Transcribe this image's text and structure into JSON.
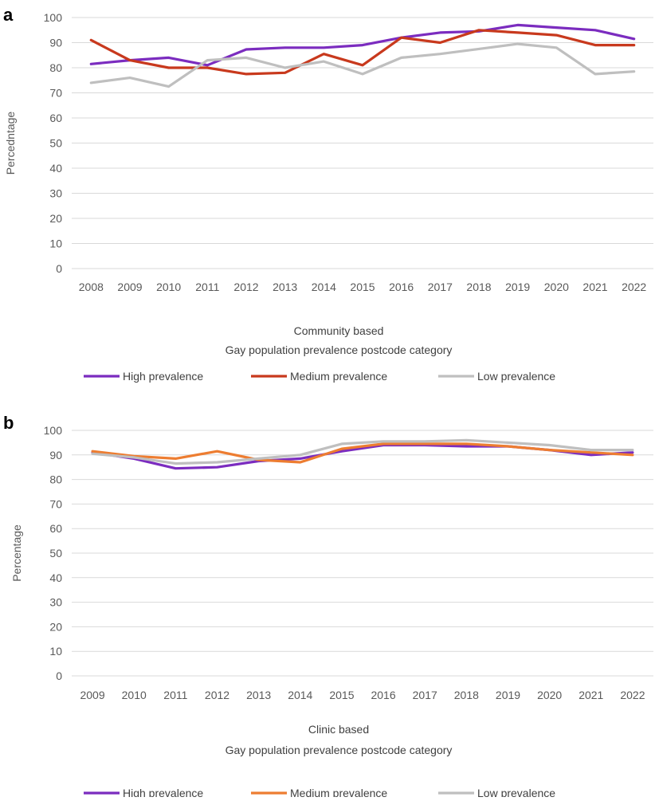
{
  "chart_data": [
    {
      "panel": "a",
      "type": "line",
      "title": "Community based",
      "subtitle": "Gay population prevalence postcode category",
      "ylabel": "Percedntage",
      "xlabel": "",
      "ylim": [
        0,
        100
      ],
      "yticks": [
        0,
        10,
        20,
        30,
        40,
        50,
        60,
        70,
        80,
        90,
        100
      ],
      "categories": [
        "2008",
        "2009",
        "2010",
        "2011",
        "2012",
        "2013",
        "2014",
        "2015",
        "2016",
        "2017",
        "2018",
        "2019",
        "2020",
        "2021",
        "2022"
      ],
      "grid": true,
      "legend_position": "bottom",
      "series": [
        {
          "name": "High prevalence",
          "color": "#7B2CBF",
          "values": [
            81.5,
            83,
            84,
            81,
            87.3,
            88,
            88,
            89,
            92,
            94,
            94.5,
            97,
            96,
            95,
            91.5
          ]
        },
        {
          "name": "Medium prevalence",
          "color": "#C8391D",
          "values": [
            91,
            83,
            80,
            80,
            77.5,
            78,
            85.5,
            81,
            92,
            90,
            95,
            94,
            93,
            89,
            89
          ]
        },
        {
          "name": "Low prevalence",
          "color": "#BFBFBF",
          "values": [
            74,
            76,
            72.5,
            83,
            84,
            80,
            82.5,
            77.5,
            84,
            85.5,
            87.5,
            89.5,
            88,
            77.5,
            78.5
          ]
        }
      ]
    },
    {
      "panel": "b",
      "type": "line",
      "title": "Clinic based",
      "subtitle": "Gay population prevalence postcode category",
      "ylabel": "Percentage",
      "xlabel": "",
      "ylim": [
        0,
        100
      ],
      "yticks": [
        0,
        10,
        20,
        30,
        40,
        50,
        60,
        70,
        80,
        90,
        100
      ],
      "categories": [
        "2009",
        "2010",
        "2011",
        "2012",
        "2013",
        "2014",
        "2015",
        "2016",
        "2017",
        "2018",
        "2019",
        "2020",
        "2021",
        "2022"
      ],
      "grid": true,
      "legend_position": "bottom",
      "series": [
        {
          "name": "High prevalence",
          "color": "#7B2CBF",
          "values": [
            91,
            88.5,
            84.5,
            85,
            87.5,
            88.5,
            91.5,
            94,
            94,
            93.5,
            93.5,
            92,
            90,
            91
          ]
        },
        {
          "name": "Medium prevalence",
          "color": "#ED7D31",
          "values": [
            91.5,
            89.5,
            88.5,
            91.5,
            88,
            87,
            92.5,
            94.5,
            94.5,
            94.5,
            93.5,
            92,
            91,
            90
          ]
        },
        {
          "name": "Low prevalence",
          "color": "#BFBFBF",
          "values": [
            90.5,
            89,
            86.5,
            87,
            88.5,
            90,
            94.5,
            95.5,
            95.5,
            96,
            95,
            94,
            92,
            92
          ]
        }
      ]
    }
  ]
}
